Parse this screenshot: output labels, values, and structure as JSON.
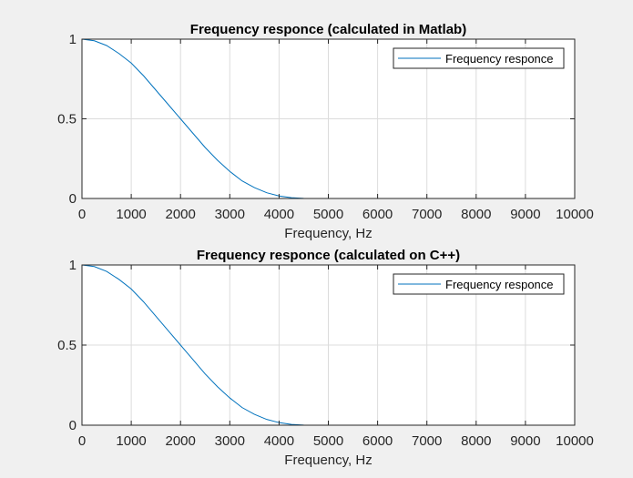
{
  "figure": {
    "background": "#f0f0f0",
    "axes_background": "#ffffff",
    "grid_color": "#dcdcdc",
    "line_color": "#0072bd"
  },
  "chart_data": [
    {
      "type": "line",
      "title": "Frequency responce (calculated in Matlab)",
      "xlabel": "Frequency, Hz",
      "ylabel": "",
      "xlim": [
        0,
        10000
      ],
      "ylim": [
        0,
        1
      ],
      "xticks": [
        "0",
        "1000",
        "2000",
        "3000",
        "4000",
        "5000",
        "6000",
        "7000",
        "8000",
        "9000",
        "10000"
      ],
      "yticks": [
        "0",
        "0.5",
        "1"
      ],
      "grid": true,
      "legend": {
        "position": "top-right",
        "entries": [
          "Frequency responce"
        ]
      },
      "series": [
        {
          "name": "Frequency responce",
          "x": [
            0,
            250,
            500,
            750,
            1000,
            1250,
            1500,
            1750,
            2000,
            2250,
            2500,
            2750,
            3000,
            3250,
            3500,
            3750,
            4000,
            4250,
            4500,
            4750,
            5000,
            5500,
            6000,
            6500,
            7000,
            7500,
            8000,
            8500,
            9000,
            9500,
            10000
          ],
          "y": [
            1.0,
            0.99,
            0.96,
            0.91,
            0.85,
            0.77,
            0.68,
            0.59,
            0.5,
            0.41,
            0.32,
            0.24,
            0.17,
            0.11,
            0.068,
            0.036,
            0.016,
            0.005,
            0.001,
            0.0,
            0.0,
            0.0,
            0.0,
            0.0,
            0.0,
            0.0,
            0.0,
            0.0,
            0.0,
            0.0,
            0.0
          ]
        }
      ]
    },
    {
      "type": "line",
      "title": "Frequency responce (calculated on C++)",
      "xlabel": "Frequency, Hz",
      "ylabel": "",
      "xlim": [
        0,
        10000
      ],
      "ylim": [
        0,
        1
      ],
      "xticks": [
        "0",
        "1000",
        "2000",
        "3000",
        "4000",
        "5000",
        "6000",
        "7000",
        "8000",
        "9000",
        "10000"
      ],
      "yticks": [
        "0",
        "0.5",
        "1"
      ],
      "grid": true,
      "legend": {
        "position": "top-right",
        "entries": [
          "Frequency responce"
        ]
      },
      "series": [
        {
          "name": "Frequency responce",
          "x": [
            0,
            250,
            500,
            750,
            1000,
            1250,
            1500,
            1750,
            2000,
            2250,
            2500,
            2750,
            3000,
            3250,
            3500,
            3750,
            4000,
            4250,
            4500,
            4750,
            5000,
            5500,
            6000,
            6500,
            7000,
            7500,
            8000,
            8500,
            9000,
            9500,
            10000
          ],
          "y": [
            1.0,
            0.99,
            0.96,
            0.91,
            0.85,
            0.77,
            0.68,
            0.59,
            0.5,
            0.41,
            0.32,
            0.24,
            0.17,
            0.11,
            0.068,
            0.036,
            0.016,
            0.005,
            0.001,
            0.0,
            0.0,
            0.0,
            0.0,
            0.0,
            0.0,
            0.0,
            0.0,
            0.0,
            0.0,
            0.0,
            0.0
          ]
        }
      ]
    }
  ]
}
